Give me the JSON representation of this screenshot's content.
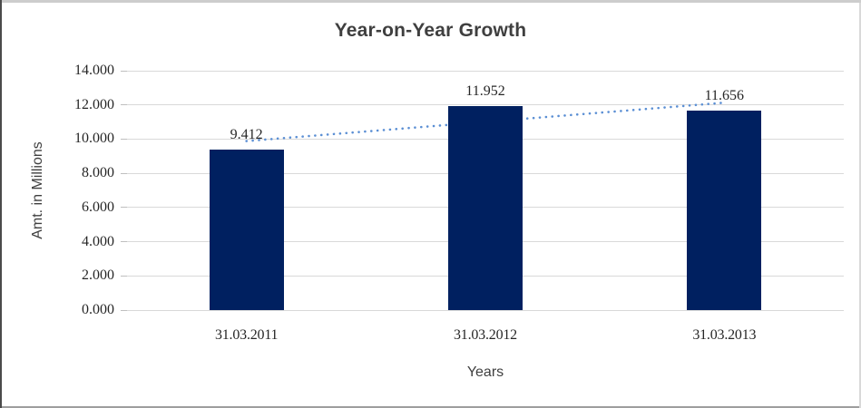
{
  "chart_data": {
    "type": "bar",
    "title": "Year-on-Year Growth",
    "categories": [
      "31.03.2011",
      "31.03.2012",
      "31.03.2013"
    ],
    "values": [
      9.412,
      11.952,
      11.656
    ],
    "data_labels": [
      "9.412",
      "11.952",
      "11.656"
    ],
    "xlabel": "Years",
    "ylabel": "Amt. in Millions",
    "ylim": [
      0,
      14
    ],
    "ytick_step": 2,
    "ytick_labels": [
      "0.000",
      "2.000",
      "4.000",
      "6.000",
      "8.000",
      "10.000",
      "12.000",
      "14.000"
    ],
    "grid": "horizontal",
    "legend": "none",
    "colors": {
      "bar": "#002060",
      "trendline": "#5b8fd4",
      "gridline": "#d9d9d9",
      "tick": "#bfbfbf",
      "title_text": "#3f3f3f",
      "label_text": "#262626"
    },
    "trendline": {
      "type": "linear",
      "style": "dotted",
      "start_value": 9.885,
      "end_value": 12.129
    }
  }
}
